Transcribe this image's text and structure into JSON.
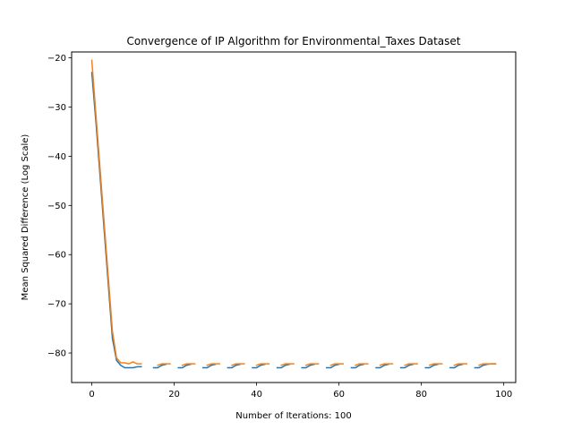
{
  "chart_data": {
    "type": "line",
    "title": "Convergence of IP Algorithm for Environmental_Taxes Dataset",
    "xlabel": "Number of Iterations: 100",
    "ylabel": "Mean Squared Difference (Log Scale)",
    "xlim": [
      -4.9,
      102.9
    ],
    "ylim": [
      -86,
      -18.8
    ],
    "xticks": [
      0,
      20,
      40,
      60,
      80,
      100
    ],
    "yticks": [
      -80,
      -70,
      -60,
      -50,
      -40,
      -30,
      -20
    ],
    "grid": false,
    "legend": "none",
    "series": [
      {
        "color": "#1f77b4",
        "x": [
          0,
          1,
          2,
          3,
          4,
          5,
          6,
          7,
          8,
          9,
          10,
          11,
          12,
          13,
          14,
          15,
          16,
          17,
          18,
          19,
          20,
          21,
          22,
          23,
          24,
          25,
          26,
          27,
          28,
          29,
          30,
          31,
          32,
          33,
          34,
          35,
          36,
          37,
          38,
          39,
          40,
          41,
          42,
          43,
          44,
          45,
          46,
          47,
          48,
          49,
          50,
          51,
          52,
          53,
          54,
          55,
          56,
          57,
          58,
          59,
          60,
          61,
          62,
          63,
          64,
          65,
          66,
          67,
          68,
          69,
          70,
          71,
          72,
          73,
          74,
          75,
          76,
          77,
          78,
          79,
          80,
          81,
          82,
          83,
          84,
          85,
          86,
          87,
          88,
          89,
          90,
          91,
          92,
          93,
          94,
          95,
          96,
          97,
          98
        ],
        "y": [
          -23,
          -33,
          -44,
          -55,
          -66,
          -77,
          -81.5,
          -82.5,
          -83,
          -83,
          -83,
          -82.8,
          -82.8,
          null,
          null,
          -83,
          -83,
          -82.5,
          -82.3,
          null,
          null,
          -83,
          -83,
          -82.5,
          -82.3,
          null,
          null,
          -83,
          -83,
          -82.5,
          -82.3,
          null,
          null,
          -83,
          -83,
          -82.5,
          -82.3,
          null,
          null,
          -83,
          -83,
          -82.5,
          -82.3,
          null,
          null,
          -83,
          -83,
          -82.5,
          -82.3,
          null,
          null,
          -83,
          -83,
          -82.5,
          -82.3,
          null,
          null,
          -83,
          -83,
          -82.5,
          -82.3,
          null,
          null,
          -83,
          -83,
          -82.5,
          -82.3,
          null,
          null,
          -83,
          -83,
          -82.5,
          -82.3,
          null,
          null,
          -83,
          -83,
          -82.5,
          -82.3,
          null,
          null,
          -83,
          -83,
          -82.5,
          -82.3,
          null,
          null,
          -83,
          -83,
          -82.5,
          -82.3,
          null,
          null,
          -83,
          -83,
          -82.5,
          -82.3,
          -82.2,
          -82.2
        ]
      },
      {
        "color": "#ff7f0e",
        "x": [
          0,
          1,
          2,
          3,
          4,
          5,
          6,
          7,
          8,
          9,
          10,
          11,
          12,
          13,
          14,
          15,
          16,
          17,
          18,
          19,
          20,
          21,
          22,
          23,
          24,
          25,
          26,
          27,
          28,
          29,
          30,
          31,
          32,
          33,
          34,
          35,
          36,
          37,
          38,
          39,
          40,
          41,
          42,
          43,
          44,
          45,
          46,
          47,
          48,
          49,
          50,
          51,
          52,
          53,
          54,
          55,
          56,
          57,
          58,
          59,
          60,
          61,
          62,
          63,
          64,
          65,
          66,
          67,
          68,
          69,
          70,
          71,
          72,
          73,
          74,
          75,
          76,
          77,
          78,
          79,
          80,
          81,
          82,
          83,
          84,
          85,
          86,
          87,
          88,
          89,
          90,
          91,
          92,
          93,
          94,
          95,
          96,
          97,
          98
        ],
        "y": [
          -20.5,
          -31.5,
          -42.5,
          -53.5,
          -64.5,
          -75.5,
          -81,
          -82,
          -82,
          -82.2,
          -81.8,
          -82.2,
          -82.2,
          null,
          null,
          null,
          -82.5,
          -82.2,
          -82.2,
          -82.2,
          null,
          null,
          -82.5,
          -82.2,
          -82.2,
          -82.2,
          null,
          null,
          -82.5,
          -82.2,
          -82.2,
          -82.2,
          null,
          null,
          -82.5,
          -82.2,
          -82.2,
          -82.2,
          null,
          null,
          -82.5,
          -82.2,
          -82.2,
          -82.2,
          null,
          null,
          -82.5,
          -82.2,
          -82.2,
          -82.2,
          null,
          null,
          -82.5,
          -82.2,
          -82.2,
          -82.2,
          null,
          null,
          -82.5,
          -82.2,
          -82.2,
          -82.2,
          null,
          null,
          -82.5,
          -82.2,
          -82.2,
          -82.2,
          null,
          null,
          -82.5,
          -82.2,
          -82.2,
          -82.2,
          null,
          null,
          -82.5,
          -82.2,
          -82.2,
          -82.2,
          null,
          null,
          -82.5,
          -82.2,
          -82.2,
          -82.2,
          null,
          null,
          -82.5,
          -82.2,
          -82.2,
          -82.2,
          null,
          null,
          -82.5,
          -82.2,
          -82.2,
          -82.2,
          -82.2
        ]
      }
    ]
  }
}
